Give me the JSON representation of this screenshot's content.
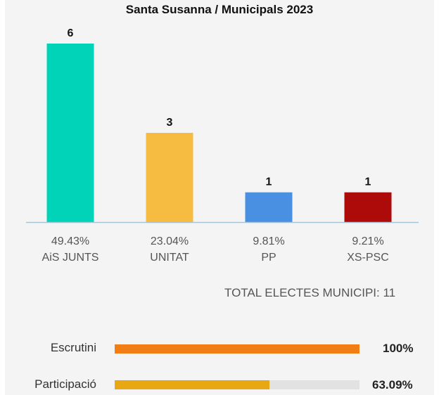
{
  "chart_data": {
    "type": "bar",
    "title": "Santa Susanna / Municipals 2023",
    "categories": [
      "AiS JUNTS",
      "UNITAT",
      "PP",
      "XS-PSC"
    ],
    "values": [
      6,
      3,
      1,
      1
    ],
    "percentages": [
      "49.43%",
      "23.04%",
      "9.81%",
      "9.21%"
    ],
    "colors": [
      "#00d3b8",
      "#f6bc41",
      "#4a90e2",
      "#ad0a0a"
    ],
    "ylim": [
      0,
      6
    ],
    "grid": false
  },
  "total_label": "TOTAL ELECTES MUNICIPI: 11",
  "meters": [
    {
      "label": "Escrutini",
      "value_text": "100%",
      "fraction": 1.0,
      "color": "#f07e14"
    },
    {
      "label": "Participació",
      "value_text": "63.09%",
      "fraction": 0.6309,
      "color": "#e7a813"
    }
  ]
}
